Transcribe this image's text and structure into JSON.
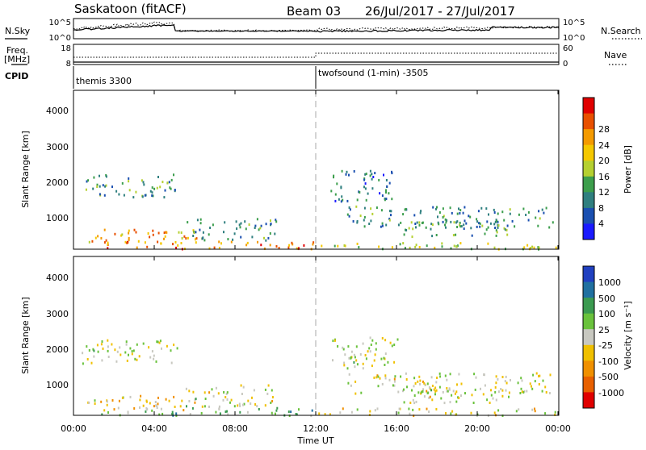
{
  "header": {
    "station": "Saskatoon (fitACF)",
    "beam": "Beam 03",
    "date_range": "26/Jul/2017 - 27/Jul/2017"
  },
  "top_panels": {
    "nsky_label": "N.Sky",
    "nsearch_label": "N.Search",
    "count_ticks_left": [
      "10^5",
      "10^0"
    ],
    "count_ticks_right": [
      "10^5",
      "10^0"
    ],
    "freq_label_1": "Freq.",
    "freq_label_2": "[MHz]",
    "freq_ticks_left": [
      "18",
      "8"
    ],
    "nave_label": "Nave",
    "nave_ticks_right": [
      "60",
      "0"
    ],
    "cpid_label": "CPID",
    "cpid_segments": [
      {
        "name": "themis 3300",
        "start_hour": 0
      },
      {
        "name": "twofsound (1-min) -3505",
        "start_hour": 12
      }
    ]
  },
  "axes": {
    "xlabel": "Time UT",
    "x_ticks": [
      "00:00",
      "04:00",
      "08:00",
      "12:00",
      "16:00",
      "20:00",
      "00:00"
    ],
    "ylabel": "Slant Range [km]",
    "y_ticks": [
      "1000",
      "2000",
      "3000",
      "4000"
    ]
  },
  "chart_data": [
    {
      "type": "heatmap",
      "panel": "power",
      "xlabel": "Time UT",
      "ylabel": "Slant Range [km]",
      "xlim_hours": [
        0,
        24
      ],
      "ylim_km": [
        180,
        4600
      ],
      "colorbar_label": "Power [dB]",
      "colorbar_ticks": [
        "4",
        "8",
        "12",
        "16",
        "20",
        "24",
        "28"
      ],
      "colors": [
        "#1a1aff",
        "#1a4fb0",
        "#2f7f7f",
        "#3c9e4c",
        "#b5d030",
        "#f5c800",
        "#f49a00",
        "#e85000",
        "#e00000"
      ],
      "regions": [
        {
          "t0": 0.4,
          "t1": 5.1,
          "r0": 1650,
          "r1": 2300,
          "level": 0.32
        },
        {
          "t0": 0.6,
          "t1": 6.2,
          "r0": 350,
          "r1": 750,
          "level": 0.7
        },
        {
          "t0": 1.0,
          "t1": 12.0,
          "r0": 200,
          "r1": 420,
          "level": 0.75
        },
        {
          "t0": 5.5,
          "t1": 10.0,
          "r0": 450,
          "r1": 1050,
          "level": 0.3
        },
        {
          "t0": 12.0,
          "t1": 24.0,
          "r0": 200,
          "r1": 400,
          "level": 0.5
        },
        {
          "t0": 12.7,
          "t1": 16.0,
          "r0": 1500,
          "r1": 2400,
          "level": 0.25
        },
        {
          "t0": 13.5,
          "t1": 23.7,
          "r0": 800,
          "r1": 1400,
          "level": 0.3
        },
        {
          "t0": 16.0,
          "t1": 21.5,
          "r0": 550,
          "r1": 1000,
          "level": 0.35
        }
      ]
    },
    {
      "type": "heatmap",
      "panel": "velocity",
      "xlabel": "Time UT",
      "ylabel": "Slant Range [km]",
      "xlim_hours": [
        0,
        24
      ],
      "ylim_km": [
        180,
        4600
      ],
      "colorbar_label": "Velocity [m s⁻¹]",
      "colorbar_ticks": [
        "1000",
        "500",
        "100",
        "25",
        "-25",
        "-100",
        "-500",
        "-1000"
      ],
      "colors": [
        "#2040c0",
        "#2070a0",
        "#3b9a50",
        "#6ac23c",
        "#c8c8c0",
        "#f0c000",
        "#f09000",
        "#e86000",
        "#e00000"
      ],
      "regions": [
        {
          "t0": 0.4,
          "t1": 5.1,
          "r0": 1650,
          "r1": 2300,
          "level": 0.5
        },
        {
          "t0": 0.6,
          "t1": 6.2,
          "r0": 350,
          "r1": 750,
          "level": 0.6
        },
        {
          "t0": 1.0,
          "t1": 12.0,
          "r0": 200,
          "r1": 420,
          "level": 0.35
        },
        {
          "t0": 5.5,
          "t1": 10.0,
          "r0": 450,
          "r1": 1050,
          "level": 0.5
        },
        {
          "t0": 12.0,
          "t1": 24.0,
          "r0": 200,
          "r1": 400,
          "level": 0.55
        },
        {
          "t0": 12.7,
          "t1": 16.0,
          "r0": 1500,
          "r1": 2400,
          "level": 0.5
        },
        {
          "t0": 13.5,
          "t1": 23.7,
          "r0": 800,
          "r1": 1400,
          "level": 0.5
        },
        {
          "t0": 16.0,
          "t1": 21.5,
          "r0": 550,
          "r1": 1000,
          "level": 0.5
        }
      ]
    }
  ]
}
